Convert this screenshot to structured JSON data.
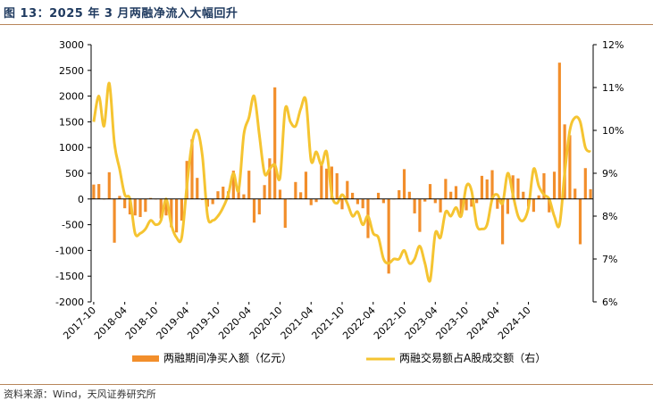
{
  "header": {
    "title": "图 13：2025 年 3 月两融净流入大幅回升"
  },
  "footer": {
    "source": "资料来源：Wind，天风证券研究所"
  },
  "colors": {
    "bar": "#F28E2B",
    "line": "#F5C431",
    "axis": "#000000"
  },
  "chart_data": {
    "type": "bar+line",
    "title": "",
    "xlabel": "",
    "ylabel_left": "",
    "ylabel_right": "",
    "ylim_left": [
      -2000,
      3000
    ],
    "ylim_right": [
      6,
      12
    ],
    "yticks_left": [
      "3000",
      "2500",
      "2000",
      "1500",
      "1000",
      "500",
      "0",
      "-500",
      "-1000",
      "-1500",
      "-2000"
    ],
    "yticks_right": [
      "12%",
      "11%",
      "10%",
      "9%",
      "8%",
      "7%",
      "6%"
    ],
    "xtick_labels": [
      "2017-10",
      "2018-04",
      "2018-10",
      "2019-04",
      "2019-10",
      "2020-04",
      "2020-10",
      "2021-04",
      "2021-10",
      "2022-04",
      "2022-10",
      "2023-04",
      "2023-10",
      "2024-04",
      "2024-10"
    ],
    "legend_position": "bottom",
    "series": [
      {
        "name": "两融期间净买入额（亿元）",
        "type": "bar",
        "axis": "left",
        "values": [
          280,
          290,
          -10,
          520,
          -850,
          60,
          -180,
          -300,
          -320,
          -350,
          -250,
          20,
          0,
          -380,
          -320,
          -550,
          -650,
          -420,
          740,
          1160,
          410,
          -20,
          -150,
          -100,
          150,
          240,
          150,
          550,
          220,
          90,
          550,
          -460,
          -300,
          270,
          790,
          2170,
          180,
          -560,
          10,
          330,
          130,
          530,
          -120,
          -60,
          700,
          590,
          630,
          500,
          -200,
          350,
          120,
          -100,
          -180,
          -760,
          0,
          120,
          -80,
          -1450,
          0,
          170,
          580,
          140,
          -280,
          -640,
          -50,
          290,
          -80,
          -260,
          390,
          140,
          250,
          -330,
          -220,
          -150,
          -80,
          450,
          380,
          560,
          -190,
          -880,
          -290,
          460,
          400,
          140,
          -150,
          -250,
          70,
          500,
          -260,
          530,
          2650,
          1450,
          1240,
          200,
          -880,
          600,
          190
        ]
      },
      {
        "name": "两融交易额占A股成交额（右）",
        "type": "line",
        "axis": "right",
        "values": [
          10.2,
          10.8,
          10.1,
          11.1,
          9.7,
          9.1,
          8.5,
          8.4,
          7.6,
          7.6,
          7.7,
          7.9,
          7.8,
          7.9,
          8.4,
          7.8,
          7.5,
          7.5,
          8.7,
          9.7,
          10.0,
          9.4,
          8.0,
          7.9,
          8.0,
          8.2,
          8.5,
          9.0,
          8.6,
          9.9,
          10.3,
          10.8,
          9.9,
          9.0,
          9.1,
          9.2,
          8.9,
          10.5,
          10.2,
          10.1,
          10.5,
          10.7,
          9.3,
          9.5,
          9.2,
          9.5,
          8.5,
          8.3,
          8.5,
          8.3,
          8.0,
          8.1,
          7.8,
          8.0,
          7.6,
          7.5,
          7.0,
          6.9,
          7.0,
          7.0,
          7.2,
          6.9,
          7.0,
          7.3,
          6.9,
          6.5,
          7.6,
          7.5,
          8.1,
          8.0,
          8.2,
          8.0,
          8.7,
          8.6,
          7.8,
          7.7,
          7.8,
          8.4,
          8.5,
          8.3,
          9.0,
          8.5,
          8.0,
          7.9,
          8.2,
          9.1,
          8.7,
          8.5,
          8.4,
          8.0,
          7.8,
          9.0,
          10.0,
          10.3,
          10.2,
          9.6,
          9.5
        ]
      }
    ]
  }
}
